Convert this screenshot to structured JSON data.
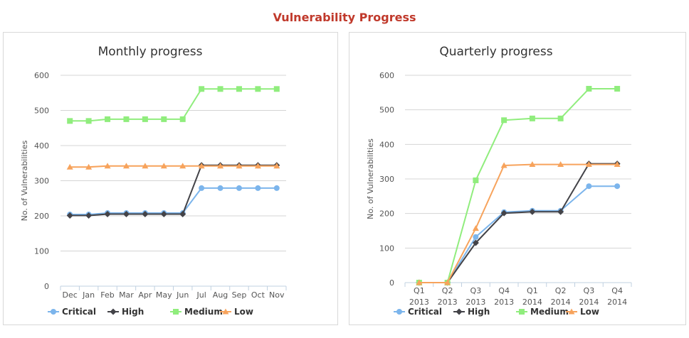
{
  "page": {
    "title": "Vulnerability Progress"
  },
  "chart_data": [
    {
      "id": "monthly",
      "type": "line",
      "title": "Monthly progress",
      "ylabel": "No. of Vulnerabilities",
      "xlabel": "",
      "ylim": [
        0,
        600
      ],
      "yticks": [
        0,
        100,
        200,
        300,
        400,
        500,
        600
      ],
      "grid": true,
      "legend_position": "bottom-left",
      "categories": [
        [
          "Dec"
        ],
        [
          "Jan"
        ],
        [
          "Feb"
        ],
        [
          "Mar"
        ],
        [
          "Apr"
        ],
        [
          "May"
        ],
        [
          "Jun"
        ],
        [
          "Jul"
        ],
        [
          "Aug"
        ],
        [
          "Sep"
        ],
        [
          "Oct"
        ],
        [
          "Nov"
        ]
      ],
      "series": [
        {
          "name": "Critical",
          "color": "#7cb5ec",
          "marker": "circle",
          "values": [
            204,
            204,
            208,
            208,
            208,
            208,
            208,
            279,
            279,
            279,
            279,
            279
          ]
        },
        {
          "name": "High",
          "color": "#434348",
          "marker": "diamond",
          "values": [
            201,
            201,
            205,
            205,
            205,
            205,
            205,
            344,
            344,
            344,
            344,
            344
          ]
        },
        {
          "name": "Medium",
          "color": "#90ed7d",
          "marker": "square",
          "values": [
            470,
            470,
            475,
            475,
            475,
            475,
            475,
            561,
            561,
            561,
            561,
            561
          ]
        },
        {
          "name": "Low",
          "color": "#f7a35c",
          "marker": "triangle",
          "values": [
            339,
            339,
            342,
            342,
            342,
            342,
            342,
            342,
            342,
            342,
            342,
            342
          ]
        }
      ]
    },
    {
      "id": "quarterly",
      "type": "line",
      "title": "Quarterly progress",
      "ylabel": "No. of Vulnerabilities",
      "xlabel": "",
      "ylim": [
        0,
        600
      ],
      "yticks": [
        0,
        100,
        200,
        300,
        400,
        500,
        600
      ],
      "grid": true,
      "legend_position": "bottom-left",
      "categories": [
        [
          "Q1",
          "2013"
        ],
        [
          "Q2",
          "2013"
        ],
        [
          "Q3",
          "2013"
        ],
        [
          "Q4",
          "2013"
        ],
        [
          "Q1",
          "2014"
        ],
        [
          "Q2",
          "2014"
        ],
        [
          "Q3",
          "2014"
        ],
        [
          "Q4",
          "2014"
        ]
      ],
      "series": [
        {
          "name": "Critical",
          "color": "#7cb5ec",
          "marker": "circle",
          "values": [
            0,
            0,
            132,
            204,
            208,
            208,
            279,
            279
          ]
        },
        {
          "name": "High",
          "color": "#434348",
          "marker": "diamond",
          "values": [
            0,
            0,
            115,
            201,
            205,
            205,
            344,
            344
          ]
        },
        {
          "name": "Medium",
          "color": "#90ed7d",
          "marker": "square",
          "values": [
            0,
            0,
            296,
            470,
            475,
            475,
            561,
            561
          ]
        },
        {
          "name": "Low",
          "color": "#f7a35c",
          "marker": "triangle",
          "values": [
            0,
            0,
            157,
            339,
            342,
            342,
            342,
            342
          ]
        }
      ]
    }
  ]
}
